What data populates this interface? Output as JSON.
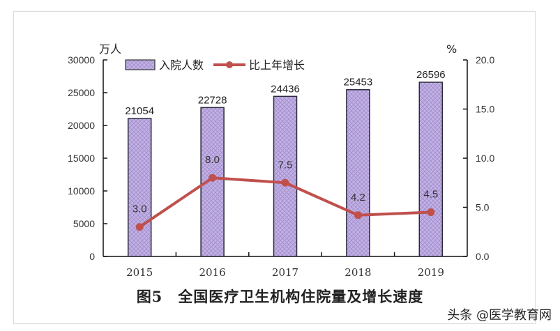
{
  "chart_data": {
    "type": "bar+line",
    "title": "图5　全国医疗卫生机构住院量及增长速度",
    "categories": [
      "2015",
      "2016",
      "2017",
      "2018",
      "2019"
    ],
    "series": [
      {
        "name": "入院人数",
        "type": "bar",
        "axis": "left",
        "values": [
          21054,
          22728,
          24436,
          25453,
          26596
        ],
        "color": "#b9a6dc"
      },
      {
        "name": "比上年增长",
        "type": "line",
        "axis": "right",
        "values": [
          3.0,
          8.0,
          7.5,
          4.2,
          4.5
        ],
        "color": "#c0504d"
      }
    ],
    "ylabel_left": "万人",
    "ylabel_right": "%",
    "ylim_left": [
      0,
      30000
    ],
    "ylim_right": [
      0.0,
      20.0
    ],
    "yticks_left": [
      "0",
      "5000",
      "10000",
      "15000",
      "20000",
      "25000",
      "30000"
    ],
    "yticks_right": [
      "0.0",
      "5.0",
      "10.0",
      "15.0",
      "20.0"
    ],
    "legend_position": "top-left inside",
    "grid": false
  },
  "caption": "图5　全国医疗卫生机构住院量及增长速度",
  "watermark": "头条 @医学教育网"
}
